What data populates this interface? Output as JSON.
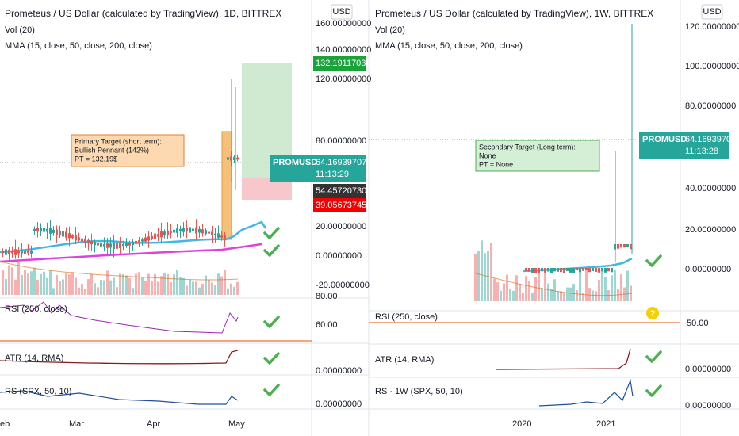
{
  "left": {
    "title": "Prometeus / US Dollar (calculated by TradingView), 1D, BITTREX",
    "vol": "Vol (20)",
    "mma": "MMA (15, close, 50, close, 200, close)",
    "currency": "USD",
    "price_ticks": [
      "160.00000000",
      "140.00000000",
      "120.00000000",
      "80.00000000",
      "20.00000000",
      "0.00000000",
      "-20.00000000",
      "80.00"
    ],
    "target_label": "132.19117033",
    "symbol": "PROMUSD",
    "last_price": "64.16939707",
    "countdown": "11:13:29",
    "stop_label": "54.45720730",
    "low_label": "39.05673745",
    "note": [
      "Primary Target (short term):",
      "Bullish Pennant (142%)",
      "PT = 132.19$"
    ],
    "rsi": "RSI (250, close)",
    "rsi_tick": "60.00",
    "atr": "ATR (14, RMA)",
    "atr_tick": "0.00000000",
    "rs": "RS (SPX, 50, 10)",
    "rs_tick": "0.00000000",
    "dates": [
      "eb",
      "Mar",
      "Apr",
      "May"
    ]
  },
  "right": {
    "title": "Prometeus / US Dollar (calculated by TradingView), 1W, BITTREX",
    "vol": "Vol (20)",
    "mma": "MMA (15, close, 50, close, 200, close)",
    "currency": "USD",
    "price_ticks": [
      "120.00000000",
      "100.00000000",
      "80.00000000",
      "40.00000000",
      "20.00000000",
      "0.00000000"
    ],
    "symbol": "PROMUSD",
    "last_price": "64.16939707",
    "countdown": "11:13:28",
    "note": [
      "Secondary Target (Long term):",
      "None",
      "PT = None"
    ],
    "rsi": "RSI (250, close)",
    "rsi_tick": "50.00",
    "question": "?",
    "atr": "ATR (14, RMA)",
    "atr_tick": "0.00000000",
    "rs": "RS · 1W (SPX, 50, 10)",
    "rs_tick": "0.00000000",
    "dates": [
      "2020",
      "2021"
    ]
  }
}
